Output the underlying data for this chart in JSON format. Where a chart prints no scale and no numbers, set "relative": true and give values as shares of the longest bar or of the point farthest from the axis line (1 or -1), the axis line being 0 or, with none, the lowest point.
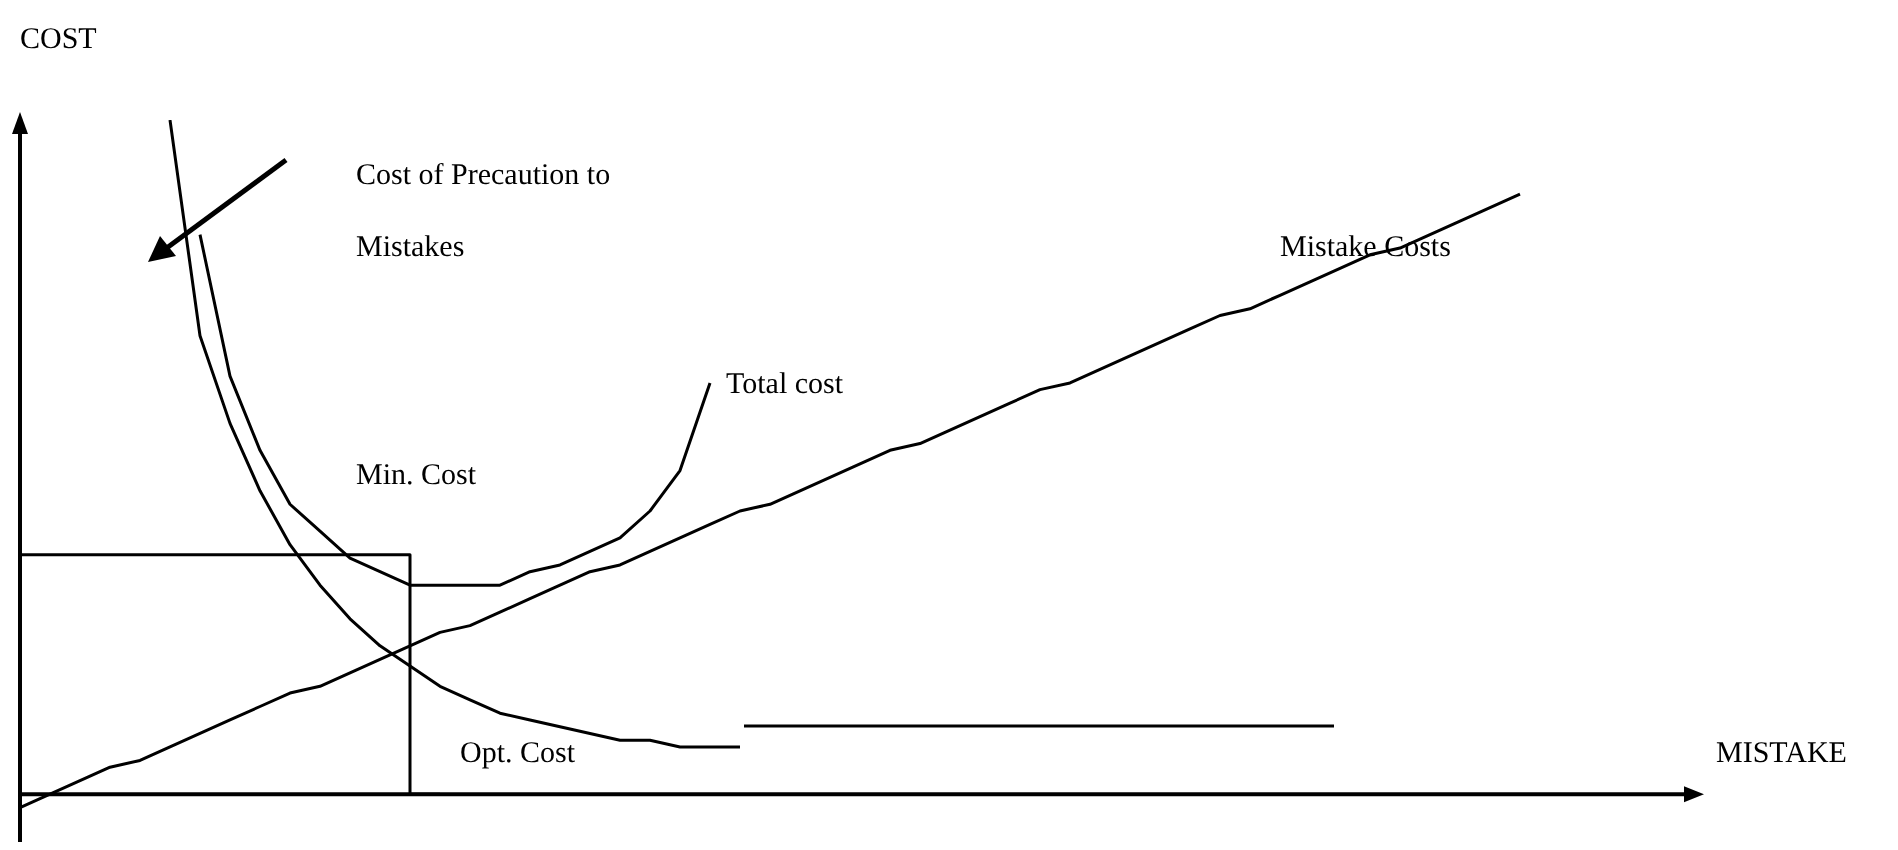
{
  "chart_data": {
    "type": "line",
    "relative": true,
    "xlabel": "MISTAKE",
    "ylabel": "COST",
    "legend": false,
    "grid": false,
    "marker": "none",
    "line_style": "solid",
    "tick_labels": false,
    "categories": [
      null,
      null,
      null,
      null,
      null,
      null,
      null,
      null,
      null,
      null,
      null,
      null,
      null,
      null,
      null,
      null,
      null,
      null,
      null,
      null,
      null,
      null,
      null,
      null,
      null,
      null,
      null,
      null,
      null,
      null,
      null,
      null,
      null,
      null,
      null,
      null,
      null,
      null,
      null,
      null,
      null,
      null,
      null,
      null,
      null,
      null,
      null,
      null,
      null,
      null,
      null,
      null,
      null,
      null,
      null,
      null
    ],
    "series": [
      {
        "name": "Cost of Precaution to Mistakes",
        "color": "#000000",
        "values": [
          null,
          null,
          null,
          null,
          null,
          1.0,
          0.68,
          0.55,
          0.45,
          0.37,
          0.31,
          0.26,
          0.22,
          0.19,
          0.16,
          0.14,
          0.12,
          0.11,
          0.1,
          0.09,
          0.08,
          0.08,
          0.07,
          0.07,
          0.07,
          null,
          null,
          null,
          null,
          null,
          null,
          null,
          null,
          null,
          null,
          null,
          null,
          null,
          null,
          null,
          null,
          null,
          null,
          null,
          null,
          null,
          null,
          null,
          null,
          null,
          null,
          null,
          null,
          null,
          null,
          null
        ]
      },
      {
        "name": "Total cost",
        "color": "#000000",
        "values": [
          null,
          null,
          null,
          null,
          null,
          null,
          0.83,
          0.62,
          0.51,
          0.43,
          0.39,
          0.35,
          0.33,
          0.31,
          0.31,
          0.31,
          0.31,
          0.33,
          0.34,
          0.36,
          0.38,
          0.42,
          0.48,
          0.61,
          null,
          null,
          null,
          null,
          null,
          null,
          null,
          null,
          null,
          null,
          null,
          null,
          null,
          null,
          null,
          null,
          null,
          null,
          null,
          null,
          null,
          null,
          null,
          null,
          null,
          null,
          null,
          null,
          null,
          null,
          null,
          null
        ]
      },
      {
        "name": "Mistake Costs",
        "color": "#000000",
        "values": [
          -0.02,
          0.0,
          0.02,
          0.04,
          0.05,
          0.07,
          0.09,
          0.11,
          0.13,
          0.15,
          0.16,
          0.18,
          0.2,
          0.22,
          0.24,
          0.25,
          0.27,
          0.29,
          0.31,
          0.33,
          0.34,
          0.36,
          0.38,
          0.4,
          0.42,
          0.43,
          0.45,
          0.47,
          0.49,
          0.51,
          0.52,
          0.54,
          0.56,
          0.58,
          0.6,
          0.61,
          0.63,
          0.65,
          0.67,
          0.69,
          0.71,
          0.72,
          0.74,
          0.76,
          0.78,
          0.8,
          0.81,
          0.83,
          0.85,
          0.87,
          0.89,
          null,
          null,
          null,
          null,
          null
        ]
      },
      {
        "type": "step",
        "color": "#000000",
        "values": [
          0.355,
          0.355,
          0.355,
          0.355,
          0.355,
          0.355,
          0.355,
          0.355,
          0.355,
          0.355,
          0.355,
          0.355,
          0.355,
          0.355,
          0,
          null,
          null,
          null,
          null,
          null,
          null,
          null,
          null,
          null,
          null,
          null,
          null,
          null,
          null,
          null,
          null,
          null,
          null,
          null,
          null,
          null,
          null,
          null,
          null,
          null,
          null,
          null,
          null,
          null,
          null,
          null,
          null,
          null,
          null,
          null,
          null,
          null,
          null,
          null,
          null,
          null
        ]
      }
    ],
    "annotations": [
      "Min. Cost",
      "Opt. Cost"
    ]
  }
}
